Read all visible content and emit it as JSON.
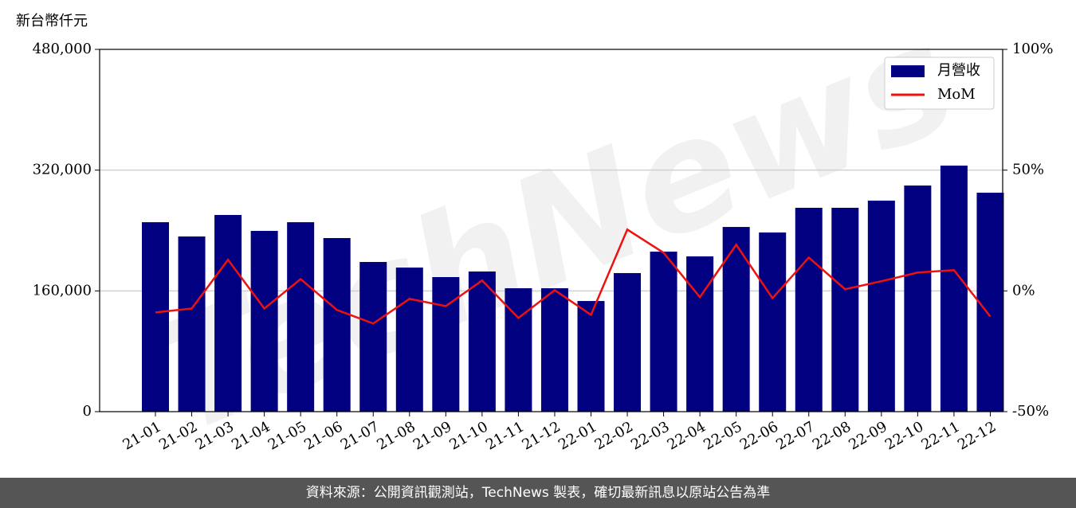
{
  "chart_data": {
    "type": "bar",
    "y_label": "新台幣仟元",
    "watermark": "TechNews",
    "categories": [
      "21-01",
      "21-02",
      "21-03",
      "21-04",
      "21-05",
      "21-06",
      "21-07",
      "21-08",
      "21-09",
      "21-10",
      "21-11",
      "21-12",
      "22-01",
      "22-02",
      "22-03",
      "22-04",
      "22-05",
      "22-06",
      "22-07",
      "22-08",
      "22-09",
      "22-10",
      "22-11",
      "22-12"
    ],
    "series": [
      {
        "name": "月營收",
        "type": "bar",
        "color": "#000080",
        "values": [
          251000,
          232100,
          260600,
          239500,
          251000,
          230000,
          198300,
          190900,
          178300,
          185700,
          163500,
          163500,
          146600,
          183600,
          212000,
          205700,
          244700,
          237400,
          270100,
          270100,
          279600,
          299600,
          326000,
          290100
        ]
      },
      {
        "name": "MoM",
        "type": "line",
        "axis": "y2",
        "color": "#ee1111",
        "values": [
          -8.9,
          -7.3,
          12.9,
          -7.3,
          4.9,
          -7.9,
          -13.5,
          -3.3,
          -6.3,
          4.3,
          -11.2,
          0.3,
          -9.9,
          25.4,
          15.8,
          -2.6,
          19.1,
          -3.0,
          13.8,
          0.7,
          4.0,
          7.6,
          8.6,
          -10.6
        ]
      }
    ],
    "ylim": [
      0,
      480000
    ],
    "yticks": [
      0,
      {
        "value": 160000,
        "label": "160,000"
      },
      {
        "value": 320000,
        "label": "320,000"
      },
      {
        "value": 480000,
        "label": "480,000"
      }
    ],
    "y2lim": [
      -50,
      100
    ],
    "y2ticks": [
      {
        "value": -50,
        "label": "-50%"
      },
      {
        "value": 0,
        "label": "0%"
      },
      {
        "value": 50,
        "label": "50%"
      },
      {
        "value": 100,
        "label": "100%"
      }
    ],
    "grid": true,
    "legend": "upper right"
  },
  "footer": "資料來源：公開資訊觀測站，TechNews 製表，確切最新訊息以原站公告為準"
}
